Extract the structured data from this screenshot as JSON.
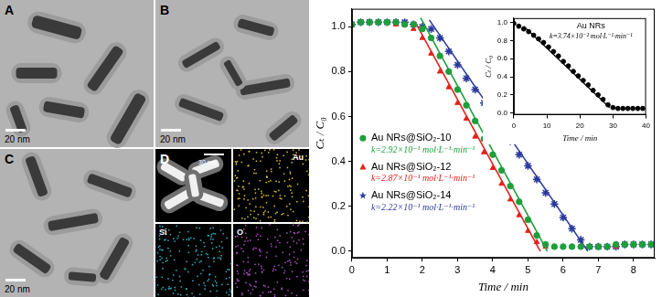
{
  "panels": [
    {
      "label": "A",
      "scale_bar": "20 nm"
    },
    {
      "label": "B",
      "scale_bar": "20 nm"
    },
    {
      "label": "C",
      "scale_bar": "20 nm"
    },
    {
      "label": "D",
      "scale_bar": "30 nm",
      "maps": [
        "Au",
        "Si",
        "O"
      ]
    }
  ],
  "chart_data": [
    {
      "type": "scatter",
      "x_label": "Time / min",
      "y_label": "Cₜ / C₀",
      "xlim": [
        0,
        8.6
      ],
      "xticks": [
        0,
        1,
        2,
        3,
        4,
        5,
        6,
        7,
        8
      ],
      "ylim": [
        -0.03,
        1.08
      ],
      "yticks": [
        {
          "value": 0,
          "label": "0.0"
        },
        {
          "value": 0.2,
          "label": "0.2"
        },
        {
          "value": 0.4,
          "label": "0.4"
        },
        {
          "value": 0.6,
          "label": "0.6"
        },
        {
          "value": 0.8,
          "label": "0.8"
        },
        {
          "value": 1.0,
          "label": "1.0"
        }
      ],
      "grid": false,
      "legend": "lower left",
      "x": [
        0,
        0.25,
        0.5,
        0.75,
        1,
        1.25,
        1.5,
        1.75,
        2,
        2.25,
        2.5,
        2.75,
        3,
        3.25,
        3.5,
        3.75,
        4,
        4.25,
        4.5,
        4.75,
        5,
        5.25,
        5.5,
        5.75,
        6,
        6.25,
        6.5,
        6.75,
        7,
        7.25,
        7.5,
        7.75,
        8,
        8.25,
        8.5
      ],
      "series": [
        {
          "name": "Au NRs@SiO₂-10",
          "annotation": "k=2.92×10⁻¹ mol·L⁻¹·min⁻¹",
          "color": "#1f9e3c",
          "marker": "circle",
          "values": [
            1.01,
            1.02,
            1.02,
            1.02,
            1.02,
            1.02,
            1.01,
            1.01,
            0.99,
            0.95,
            0.87,
            0.8,
            0.72,
            0.65,
            0.58,
            0.5,
            0.43,
            0.36,
            0.29,
            0.22,
            0.14,
            0.07,
            0.03,
            0.02,
            0.02,
            0.02,
            0.02,
            0.02,
            0.02,
            0.02,
            0.03,
            0.03,
            0.03,
            0.03,
            0.03
          ],
          "fit": {
            "x": [
              1.95,
              5.55
            ],
            "values": [
              1.04,
              0
            ]
          }
        },
        {
          "name": "Au NRs@SiO₂-12",
          "annotation": "k=2.87×10⁻¹ mol·L⁻¹·min⁻¹",
          "color": "#e3221c",
          "marker": "triangle",
          "values": [
            1.01,
            1.02,
            1.02,
            1.02,
            1.02,
            1.01,
            1.01,
            0.99,
            0.95,
            0.88,
            0.8,
            0.73,
            0.66,
            0.59,
            0.51,
            0.44,
            0.37,
            0.3,
            0.23,
            0.16,
            0.09,
            0.04,
            0.02,
            0.02,
            0.02,
            0.02,
            0.02,
            0.02,
            0.02,
            0.02,
            0.02,
            0.03,
            0.03,
            0.03,
            0.03
          ],
          "fit": {
            "x": [
              1.8,
              5.35
            ],
            "values": [
              1.02,
              0
            ]
          }
        },
        {
          "name": "Au NRs@SiO₂-14",
          "annotation": "k=2.22×10⁻¹ mol·L⁻¹·min⁻¹",
          "color": "#2b3a9c",
          "marker": "star",
          "values": [
            1.01,
            1.02,
            1.02,
            1.02,
            1.02,
            1.02,
            1.02,
            1.01,
            1.0,
            0.99,
            0.95,
            0.89,
            0.83,
            0.77,
            0.72,
            0.66,
            0.6,
            0.55,
            0.49,
            0.43,
            0.38,
            0.32,
            0.26,
            0.21,
            0.15,
            0.1,
            0.05,
            0.02,
            0.02,
            0.02,
            0.02,
            0.03,
            0.03,
            0.03,
            0.03
          ],
          "fit": {
            "x": [
              2.2,
              6.7
            ],
            "values": [
              1.03,
              0
            ]
          }
        }
      ]
    },
    {
      "type": "scatter",
      "title": "Au NRs",
      "annotation": "k=3.74×10⁻² mol·L⁻¹·min⁻¹",
      "x_label": "Time / min",
      "y_label": "Cₜ / C₀",
      "xlim": [
        0,
        40
      ],
      "xticks": [
        0,
        10,
        20,
        30,
        40
      ],
      "ylim": [
        -0.02,
        1.05
      ],
      "yticks": [
        {
          "value": 0,
          "label": "0.0"
        },
        {
          "value": 0.2,
          "label": "0.2"
        },
        {
          "value": 0.4,
          "label": "0.4"
        },
        {
          "value": 0.6,
          "label": "0.6"
        },
        {
          "value": 0.8,
          "label": "0.8"
        },
        {
          "value": 1.0,
          "label": "1.0"
        }
      ],
      "grid": false,
      "x": [
        0,
        1.5,
        3,
        4.5,
        6,
        7.5,
        9,
        10.5,
        12,
        13.5,
        15,
        16.5,
        18,
        19.5,
        21,
        22.5,
        24,
        25.5,
        27,
        28.5,
        30,
        31.5,
        33,
        34.5,
        36,
        37.5,
        39
      ],
      "series": [
        {
          "color": "#000000",
          "marker": "circle",
          "values": [
            0.99,
            0.96,
            0.93,
            0.9,
            0.86,
            0.82,
            0.78,
            0.73,
            0.68,
            0.63,
            0.57,
            0.52,
            0.46,
            0.41,
            0.36,
            0.31,
            0.25,
            0.2,
            0.15,
            0.09,
            0.06,
            0.05,
            0.05,
            0.05,
            0.05,
            0.05,
            0.05
          ],
          "fit": {
            "x": [
              3,
              29
            ],
            "values": [
              0.96,
              0.06
            ]
          }
        }
      ]
    }
  ]
}
